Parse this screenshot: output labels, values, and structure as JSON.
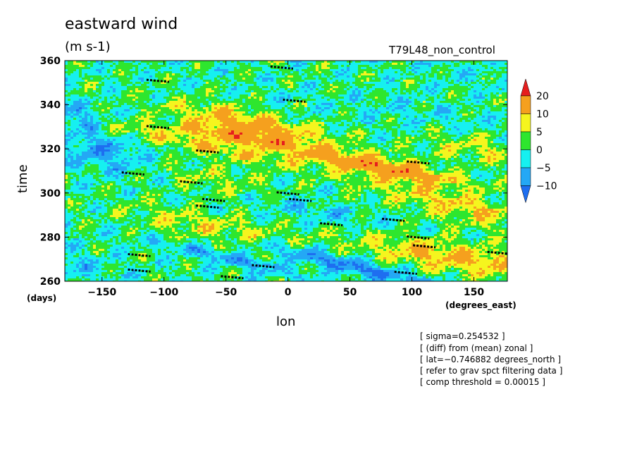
{
  "chart_data": {
    "type": "heatmap",
    "title": "eastward wind",
    "units": "(m s-1)",
    "run_label": "T79L48_non_control",
    "xlabel": "lon",
    "x_unit_label": "(degrees_east)",
    "ylabel": "time",
    "y_unit_label": "(days)",
    "xlim": [
      -180,
      177
    ],
    "ylim": [
      260,
      360
    ],
    "x_ticks": [
      -150,
      -100,
      -50,
      0,
      50,
      100,
      150
    ],
    "x_tick_labels": [
      "−150",
      "−100",
      "−50",
      "0",
      "50",
      "100",
      "150"
    ],
    "y_ticks": [
      260,
      280,
      300,
      320,
      340,
      360
    ],
    "y_tick_labels": [
      "260",
      "280",
      "300",
      "320",
      "340",
      "360"
    ],
    "colorbar": {
      "levels": [
        -10,
        -5,
        0,
        5,
        10,
        20
      ],
      "labels": [
        "−10",
        "−5",
        "0",
        "5",
        "10",
        "20"
      ],
      "colors": [
        "#1e6ef0",
        "#24a8f5",
        "#16f0f0",
        "#2ee62e",
        "#f5f51e",
        "#f5a01e",
        "#e61e1e"
      ]
    },
    "threshold_marks": [
      {
        "lon": -105,
        "time": 351
      },
      {
        "lon": -105,
        "time": 330
      },
      {
        "lon": -65,
        "time": 319
      },
      {
        "lon": -125,
        "time": 309
      },
      {
        "lon": -78,
        "time": 305
      },
      {
        "lon": -60,
        "time": 297
      },
      {
        "lon": -65,
        "time": 294
      },
      {
        "lon": 0,
        "time": 300
      },
      {
        "lon": 10,
        "time": 297
      },
      {
        "lon": -5,
        "time": 357
      },
      {
        "lon": 5,
        "time": 342
      },
      {
        "lon": 35,
        "time": 286
      },
      {
        "lon": 85,
        "time": 288
      },
      {
        "lon": 105,
        "time": 280
      },
      {
        "lon": 110,
        "time": 276
      },
      {
        "lon": 105,
        "time": 314
      },
      {
        "lon": -120,
        "time": 272
      },
      {
        "lon": -120,
        "time": 265
      },
      {
        "lon": -20,
        "time": 267
      },
      {
        "lon": -45,
        "time": 262
      },
      {
        "lon": 95,
        "time": 264
      },
      {
        "lon": 170,
        "time": 273
      }
    ]
  },
  "notes": [
    "[ sigma=0.254532 ]",
    "[ (diff) from (mean) zonal ]",
    "[ lat=−0.746882 degrees_north ]",
    "[ refer to grav spct filtering data ]",
    "[ comp threshold = 0.00015 ]"
  ]
}
